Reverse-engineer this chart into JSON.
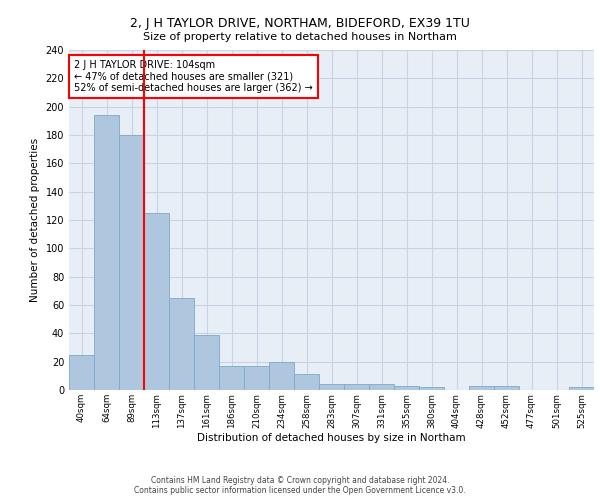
{
  "title_line1": "2, J H TAYLOR DRIVE, NORTHAM, BIDEFORD, EX39 1TU",
  "title_line2": "Size of property relative to detached houses in Northam",
  "xlabel": "Distribution of detached houses by size in Northam",
  "ylabel": "Number of detached properties",
  "categories": [
    "40sqm",
    "64sqm",
    "89sqm",
    "113sqm",
    "137sqm",
    "161sqm",
    "186sqm",
    "210sqm",
    "234sqm",
    "258sqm",
    "283sqm",
    "307sqm",
    "331sqm",
    "355sqm",
    "380sqm",
    "404sqm",
    "428sqm",
    "452sqm",
    "477sqm",
    "501sqm",
    "525sqm"
  ],
  "values": [
    25,
    194,
    180,
    125,
    65,
    39,
    17,
    17,
    20,
    11,
    4,
    4,
    4,
    3,
    2,
    0,
    3,
    3,
    0,
    0,
    2
  ],
  "bar_color": "#aec6de",
  "bar_edge_color": "#7aaac8",
  "grid_color": "#c8d4e4",
  "background_color": "#e8eef6",
  "vline_color": "red",
  "annotation_text": "2 J H TAYLOR DRIVE: 104sqm\n← 47% of detached houses are smaller (321)\n52% of semi-detached houses are larger (362) →",
  "annotation_box_color": "white",
  "annotation_box_edge_color": "red",
  "ylim": [
    0,
    240
  ],
  "yticks": [
    0,
    20,
    40,
    60,
    80,
    100,
    120,
    140,
    160,
    180,
    200,
    220,
    240
  ],
  "footer_line1": "Contains HM Land Registry data © Crown copyright and database right 2024.",
  "footer_line2": "Contains public sector information licensed under the Open Government Licence v3.0."
}
